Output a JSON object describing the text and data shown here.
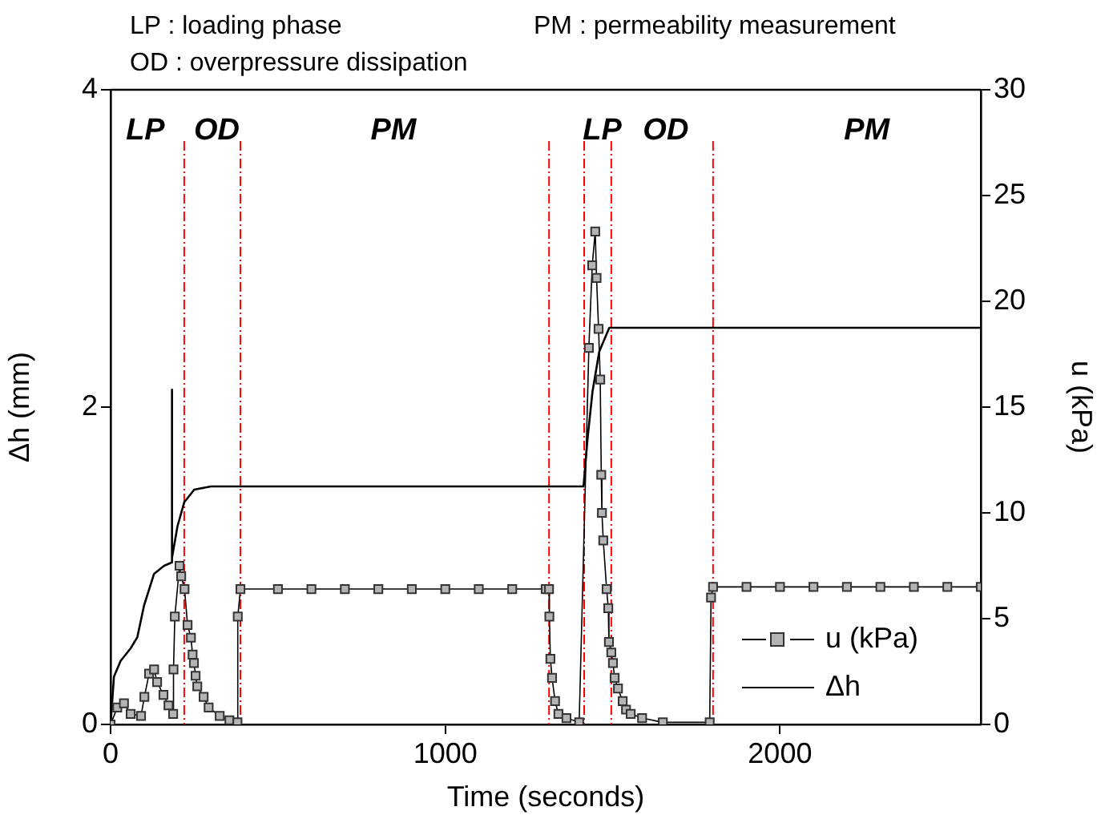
{
  "chart_data": {
    "type": "line",
    "xlabel": "Time (seconds)",
    "ylabel": "Δh (mm)",
    "y2label": "u (kPa)",
    "xlim": [
      0,
      2600
    ],
    "xticks": [
      0,
      1000,
      2000
    ],
    "ylim": [
      0,
      4
    ],
    "yticks": [
      0,
      2,
      4
    ],
    "y2lim": [
      0,
      30
    ],
    "y2ticks": [
      0,
      5,
      10,
      15,
      20,
      25,
      30
    ],
    "grid": false,
    "legend": "bottom right",
    "series": [
      {
        "name": "u (kPa)",
        "type": "line",
        "axis": "y2",
        "marker": "square",
        "color": "#b4b4b4",
        "x": [
          0,
          20,
          40,
          60,
          91,
          101,
          115,
          130,
          139,
          158,
          173,
          187,
          188,
          192,
          206,
          211,
          221,
          230,
          240,
          245,
          249,
          254,
          259,
          278,
          293,
          326,
          355,
          379,
          380,
          388,
          500,
          600,
          700,
          800,
          900,
          1000,
          1100,
          1200,
          1300,
          1310,
          1311,
          1314,
          1319,
          1328,
          1338,
          1362,
          1400,
          1429,
          1439,
          1448,
          1452,
          1458,
          1463,
          1466,
          1468,
          1472,
          1482,
          1487,
          1489,
          1496,
          1501,
          1506,
          1516,
          1530,
          1540,
          1554,
          1588,
          1650,
          1790,
          1794,
          1800,
          1900,
          2000,
          2100,
          2200,
          2300,
          2400,
          2500,
          2600
        ],
        "values": [
          0,
          0.8,
          1.0,
          0.5,
          0.4,
          1.3,
          2.4,
          2.6,
          2.0,
          1.4,
          0.9,
          0.5,
          2.6,
          5.1,
          7.5,
          7.0,
          6.4,
          4.7,
          4.1,
          3.3,
          2.9,
          2.3,
          1.8,
          1.3,
          0.8,
          0.4,
          0.2,
          0.1,
          5.1,
          6.4,
          6.4,
          6.4,
          6.4,
          6.4,
          6.4,
          6.4,
          6.4,
          6.4,
          6.4,
          6.4,
          5.1,
          3.1,
          2.2,
          1.1,
          0.5,
          0.3,
          0.1,
          17.8,
          21.7,
          23.3,
          21.1,
          18.7,
          16.3,
          11.8,
          10.0,
          8.7,
          6.4,
          5.5,
          3.9,
          3.4,
          2.9,
          2.2,
          1.7,
          1.1,
          0.7,
          0.5,
          0.3,
          0.1,
          0.1,
          6.0,
          6.5,
          6.5,
          6.5,
          6.5,
          6.5,
          6.5,
          6.5,
          6.5,
          6.5
        ]
      },
      {
        "name": "Δh",
        "type": "line",
        "axis": "y",
        "marker": "none",
        "color": "#000000",
        "x": [
          0,
          10,
          30,
          60,
          80,
          100,
          130,
          160,
          182,
          183,
          184,
          200,
          220,
          250,
          300,
          600,
          1000,
          1413,
          1425,
          1440,
          1460,
          1490,
          2000,
          2600
        ],
        "values": [
          0,
          0.3,
          0.4,
          0.48,
          0.55,
          0.75,
          0.95,
          1.0,
          1.02,
          2.11,
          1.05,
          1.25,
          1.4,
          1.48,
          1.5,
          1.5,
          1.5,
          1.5,
          1.8,
          2.1,
          2.35,
          2.5,
          2.5,
          2.5
        ]
      }
    ],
    "ref_lines": [
      {
        "axis": "x",
        "value": 220,
        "color": "#ff0000",
        "line_style": "dashed"
      },
      {
        "axis": "x",
        "value": 388,
        "color": "#ff0000",
        "line_style": "dashed"
      },
      {
        "axis": "x",
        "value": 1310,
        "color": "#ff0000",
        "line_style": "dashed"
      },
      {
        "axis": "x",
        "value": 1415,
        "color": "#ff0000",
        "line_style": "dashed"
      },
      {
        "axis": "x",
        "value": 1496,
        "color": "#ff0000",
        "line_style": "dashed"
      },
      {
        "axis": "x",
        "value": 1800,
        "color": "#ff0000",
        "line_style": "dashed"
      }
    ],
    "annotations": [
      "LP : loading phase",
      "PM : permeability measurement",
      "OD : overpressure dissipation",
      "LP",
      "OD",
      "PM",
      "LP",
      "OD",
      "PM"
    ]
  }
}
